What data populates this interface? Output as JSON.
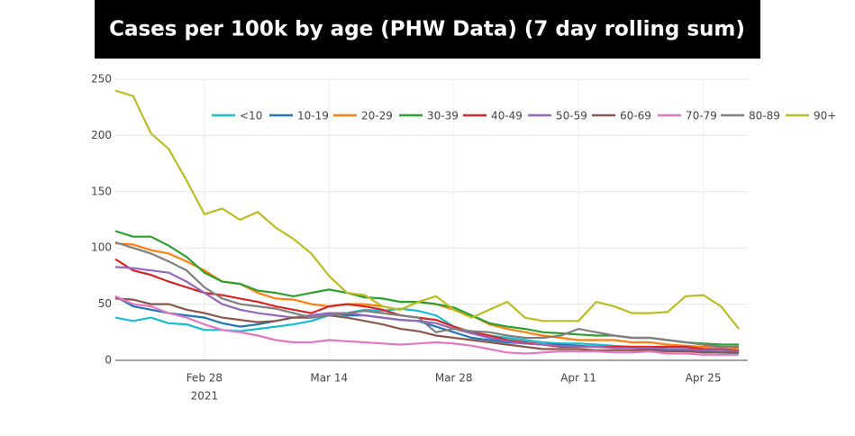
{
  "chart_data": {
    "type": "line",
    "title": "Cases per 100k by age (PHW Data) (7 day rolling sum)",
    "x": [
      "2021-02-18",
      "2021-02-20",
      "2021-02-22",
      "2021-02-24",
      "2021-02-26",
      "2021-02-28",
      "2021-03-02",
      "2021-03-04",
      "2021-03-06",
      "2021-03-08",
      "2021-03-10",
      "2021-03-12",
      "2021-03-14",
      "2021-03-16",
      "2021-03-18",
      "2021-03-20",
      "2021-03-22",
      "2021-03-24",
      "2021-03-26",
      "2021-03-28",
      "2021-03-30",
      "2021-04-01",
      "2021-04-03",
      "2021-04-05",
      "2021-04-07",
      "2021-04-09",
      "2021-04-11",
      "2021-04-13",
      "2021-04-15",
      "2021-04-17",
      "2021-04-19",
      "2021-04-21",
      "2021-04-23",
      "2021-04-25",
      "2021-04-27",
      "2021-04-29"
    ],
    "xlim": [
      "2021-02-18",
      "2021-04-30"
    ],
    "xticks": [
      {
        "value": "2021-02-28",
        "label": "Feb 28"
      },
      {
        "value": "2021-03-14",
        "label": "Mar 14"
      },
      {
        "value": "2021-03-28",
        "label": "Mar 28"
      },
      {
        "value": "2021-04-11",
        "label": "Apr 11"
      },
      {
        "value": "2021-04-25",
        "label": "Apr 25"
      }
    ],
    "xtick_year": "2021",
    "ylim": [
      0,
      250
    ],
    "yticks": [
      0,
      50,
      100,
      150,
      200,
      250
    ],
    "grid": true,
    "legend": "top",
    "series": [
      {
        "name": "<10",
        "color": "#17becf",
        "values": [
          38,
          35,
          38,
          33,
          32,
          27,
          27,
          26,
          28,
          30,
          32,
          35,
          40,
          42,
          45,
          44,
          46,
          44,
          40,
          30,
          25,
          22,
          20,
          18,
          16,
          15,
          15,
          14,
          13,
          12,
          12,
          10,
          9,
          8,
          7,
          6
        ]
      },
      {
        "name": "10-19",
        "color": "#1f77b4",
        "values": [
          57,
          48,
          45,
          42,
          40,
          38,
          33,
          30,
          32,
          35,
          38,
          40,
          42,
          40,
          40,
          38,
          36,
          35,
          30,
          25,
          20,
          18,
          16,
          15,
          14,
          14,
          13,
          12,
          12,
          11,
          10,
          9,
          8,
          8,
          7,
          7
        ]
      },
      {
        "name": "20-29",
        "color": "#ff7f0e",
        "values": [
          104,
          103,
          98,
          95,
          88,
          80,
          70,
          68,
          60,
          55,
          54,
          50,
          48,
          50,
          50,
          48,
          45,
          52,
          50,
          45,
          40,
          32,
          28,
          25,
          22,
          20,
          18,
          18,
          18,
          16,
          16,
          14,
          13,
          12,
          12,
          11
        ]
      },
      {
        "name": "30-39",
        "color": "#2ca02c",
        "values": [
          115,
          110,
          110,
          102,
          92,
          78,
          70,
          68,
          62,
          60,
          57,
          60,
          63,
          60,
          56,
          55,
          52,
          52,
          50,
          47,
          40,
          33,
          30,
          28,
          25,
          24,
          23,
          22,
          22,
          20,
          20,
          18,
          16,
          15,
          14,
          14
        ]
      },
      {
        "name": "40-49",
        "color": "#d62728",
        "values": [
          90,
          80,
          76,
          70,
          65,
          60,
          58,
          55,
          52,
          48,
          45,
          42,
          48,
          50,
          48,
          45,
          40,
          38,
          36,
          30,
          25,
          22,
          18,
          16,
          14,
          12,
          12,
          12,
          12,
          12,
          12,
          12,
          12,
          10,
          10,
          9
        ]
      },
      {
        "name": "50-59",
        "color": "#9467bd",
        "values": [
          83,
          82,
          80,
          78,
          70,
          60,
          50,
          45,
          42,
          40,
          38,
          40,
          42,
          42,
          40,
          38,
          36,
          35,
          33,
          28,
          24,
          20,
          17,
          15,
          14,
          13,
          12,
          12,
          11,
          11,
          11,
          10,
          10,
          9,
          9,
          8
        ]
      },
      {
        "name": "60-69",
        "color": "#8c564b",
        "values": [
          55,
          54,
          50,
          50,
          45,
          42,
          38,
          36,
          34,
          35,
          38,
          38,
          40,
          38,
          35,
          32,
          28,
          26,
          22,
          20,
          18,
          16,
          14,
          12,
          10,
          10,
          10,
          9,
          9,
          9,
          9,
          8,
          8,
          7,
          7,
          7
        ]
      },
      {
        "name": "70-79",
        "color": "#e377c2",
        "values": [
          57,
          50,
          48,
          42,
          38,
          32,
          27,
          25,
          22,
          18,
          16,
          16,
          18,
          17,
          16,
          15,
          14,
          15,
          16,
          15,
          13,
          10,
          7,
          6,
          7,
          8,
          8,
          8,
          7,
          7,
          8,
          6,
          6,
          5,
          5,
          5
        ]
      },
      {
        "name": "80-89",
        "color": "#7f7f7f",
        "values": [
          105,
          100,
          95,
          88,
          80,
          65,
          55,
          50,
          48,
          46,
          42,
          38,
          40,
          42,
          44,
          42,
          40,
          38,
          25,
          28,
          26,
          25,
          22,
          20,
          20,
          22,
          28,
          25,
          22,
          20,
          20,
          18,
          16,
          14,
          12,
          12
        ]
      },
      {
        "name": "90+",
        "color": "#bcbd22",
        "values": [
          240,
          235,
          202,
          188,
          160,
          130,
          135,
          125,
          132,
          118,
          108,
          95,
          75,
          60,
          58,
          48,
          45,
          52,
          57,
          45,
          38,
          45,
          52,
          38,
          35,
          35,
          35,
          52,
          48,
          42,
          42,
          43,
          57,
          58,
          48,
          28
        ]
      }
    ]
  }
}
